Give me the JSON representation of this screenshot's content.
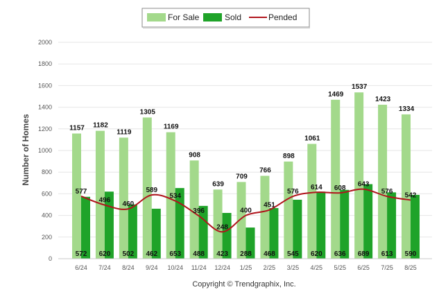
{
  "chart_data": {
    "type": "bar",
    "categories": [
      "6/24",
      "7/24",
      "8/24",
      "9/24",
      "10/24",
      "11/24",
      "12/24",
      "1/25",
      "2/25",
      "3/25",
      "4/25",
      "5/25",
      "6/25",
      "7/25",
      "8/25"
    ],
    "series": [
      {
        "name": "For Sale",
        "type": "bar",
        "color": "#a3d98b",
        "values": [
          1157,
          1182,
          1119,
          1305,
          1169,
          908,
          639,
          709,
          766,
          898,
          1061,
          1469,
          1537,
          1423,
          1334
        ]
      },
      {
        "name": "Sold",
        "type": "bar",
        "color": "#1fa329",
        "values": [
          572,
          620,
          502,
          462,
          653,
          488,
          423,
          288,
          468,
          545,
          620,
          636,
          689,
          613,
          590
        ]
      },
      {
        "name": "Pended",
        "type": "line",
        "color": "#b0141c",
        "values": [
          577,
          496,
          460,
          589,
          534,
          396,
          248,
          400,
          451,
          576,
          614,
          608,
          643,
          576,
          542
        ]
      }
    ],
    "title": "",
    "xlabel": "",
    "ylabel": "Number of Homes",
    "ylim": [
      0,
      2000
    ],
    "yticks": [
      0,
      200,
      400,
      600,
      800,
      1000,
      1200,
      1400,
      1600,
      1800,
      2000
    ],
    "grid": true,
    "legend_position": "top-center",
    "footer": "Copyright © Trendgraphix, Inc."
  }
}
